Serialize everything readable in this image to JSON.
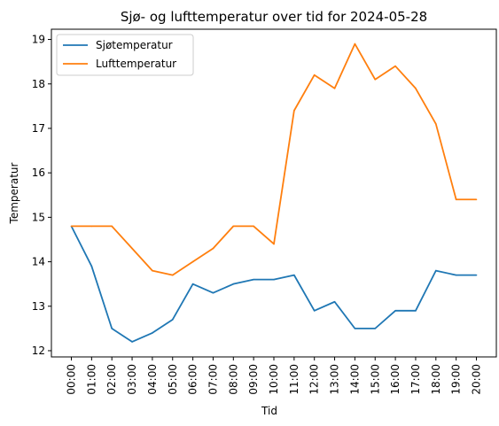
{
  "chart_data": {
    "type": "line",
    "title": "Sjø- og lufttemperatur over tid for 2024-05-28",
    "xlabel": "Tid",
    "ylabel": "Temperatur",
    "categories": [
      "00:00",
      "01:00",
      "02:00",
      "03:00",
      "04:00",
      "05:00",
      "06:00",
      "07:00",
      "08:00",
      "09:00",
      "10:00",
      "11:00",
      "12:00",
      "13:00",
      "14:00",
      "15:00",
      "16:00",
      "17:00",
      "18:00",
      "19:00",
      "20:00"
    ],
    "y_ticks": [
      12,
      13,
      14,
      15,
      16,
      17,
      18,
      19
    ],
    "ylim": [
      11.86,
      19.23
    ],
    "grid": false,
    "legend_position": "upper-left",
    "series": [
      {
        "name": "Sjøtemperatur",
        "color": "#1f77b4",
        "values": [
          14.8,
          13.9,
          12.5,
          12.2,
          12.4,
          12.7,
          13.5,
          13.3,
          13.5,
          13.6,
          13.6,
          13.7,
          12.9,
          13.1,
          12.5,
          12.5,
          12.9,
          12.9,
          13.8,
          13.7,
          13.7
        ]
      },
      {
        "name": "Lufttemperatur",
        "color": "#ff7f0e",
        "values": [
          14.8,
          14.8,
          14.8,
          14.3,
          13.8,
          13.7,
          14.0,
          14.3,
          14.8,
          14.8,
          14.4,
          17.4,
          18.2,
          17.9,
          18.9,
          18.1,
          18.4,
          17.9,
          17.1,
          15.4,
          15.4
        ]
      }
    ]
  }
}
